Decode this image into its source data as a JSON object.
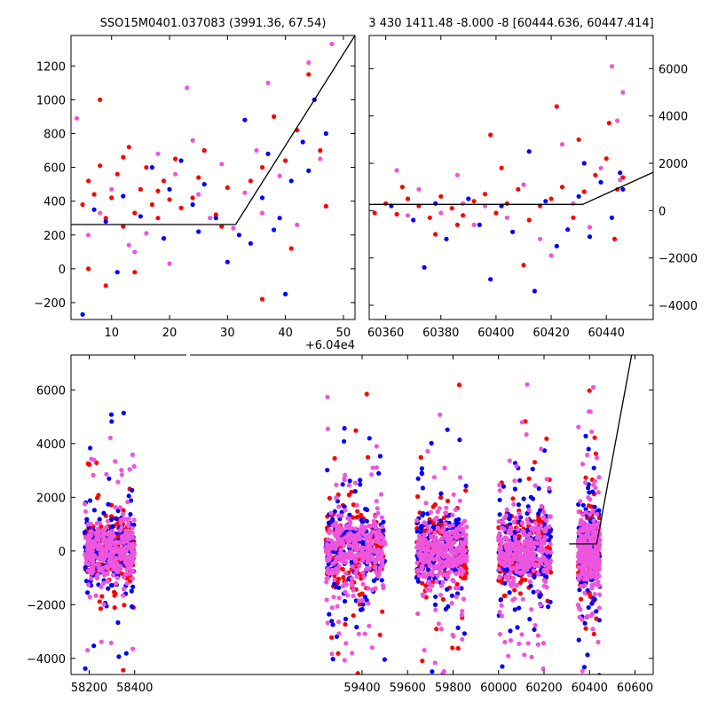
{
  "figure": {
    "title_left": "SSO15M0401.037083 (3991.36, 67.54)",
    "title_right": "3 430 1411.48 -8.000 -8 [60444.636, 60447.414]"
  },
  "colors": {
    "red": "#ff0000",
    "blue": "#0000ff",
    "violet": "#ee55dd",
    "model": "#000000"
  },
  "chart_data": [
    {
      "panel": "top-left",
      "type": "scatter",
      "xlim": [
        3,
        52
      ],
      "ylim": [
        -300,
        1380
      ],
      "x_offset_label": "+6.04e4",
      "x_ticks": [
        10,
        20,
        30,
        40,
        50
      ],
      "y_ticks": [
        -200,
        0,
        200,
        400,
        600,
        800,
        1000,
        1200
      ],
      "y_tick_labels": [
        "−200",
        "0",
        "200",
        "400",
        "600",
        "800",
        "1000",
        "1200"
      ],
      "model_line": {
        "x": [
          3,
          31.4,
          52
        ],
        "y": [
          262,
          262,
          1380
        ]
      },
      "series": [
        {
          "color": "red",
          "points": [
            [
              5,
              380
            ],
            [
              6,
              520
            ],
            [
              7,
              440
            ],
            [
              8,
              610
            ],
            [
              9,
              300
            ],
            [
              10,
              420
            ],
            [
              11,
              560
            ],
            [
              12,
              250
            ],
            [
              8,
              1000
            ],
            [
              13,
              720
            ],
            [
              14,
              330
            ],
            [
              15,
              470
            ],
            [
              17,
              380
            ],
            [
              18,
              300
            ],
            [
              19,
              520
            ],
            [
              20,
              410
            ],
            [
              21,
              650
            ],
            [
              22,
              360
            ],
            [
              24,
              420
            ],
            [
              25,
              540
            ],
            [
              26,
              700
            ],
            [
              28,
              320
            ],
            [
              30,
              480
            ],
            [
              34,
              520
            ],
            [
              36,
              600
            ],
            [
              38,
              900
            ],
            [
              40,
              640
            ],
            [
              42,
              820
            ],
            [
              44,
              1150
            ],
            [
              46,
              700
            ],
            [
              47,
              370
            ],
            [
              36,
              -180
            ],
            [
              41,
              120
            ],
            [
              29,
              250
            ],
            [
              16,
              600
            ],
            [
              6,
              0
            ],
            [
              9,
              -100
            ],
            [
              12,
              660
            ],
            [
              14,
              -20
            ],
            [
              18,
              460
            ]
          ]
        },
        {
          "color": "blue",
          "points": [
            [
              7,
              350
            ],
            [
              9,
              280
            ],
            [
              12,
              430
            ],
            [
              15,
              310
            ],
            [
              17,
              600
            ],
            [
              20,
              470
            ],
            [
              22,
              640
            ],
            [
              24,
              380
            ],
            [
              26,
              500
            ],
            [
              28,
              300
            ],
            [
              32,
              200
            ],
            [
              34,
              150
            ],
            [
              36,
              420
            ],
            [
              37,
              680
            ],
            [
              39,
              300
            ],
            [
              41,
              520
            ],
            [
              43,
              750
            ],
            [
              45,
              1000
            ],
            [
              47,
              800
            ],
            [
              33,
              880
            ],
            [
              30,
              40
            ],
            [
              25,
              220
            ],
            [
              19,
              180
            ],
            [
              11,
              -20
            ],
            [
              5,
              -270
            ],
            [
              40,
              -150
            ],
            [
              38,
              230
            ],
            [
              44,
              580
            ]
          ]
        },
        {
          "color": "violet",
          "points": [
            [
              4,
              890
            ],
            [
              6,
              200
            ],
            [
              8,
              330
            ],
            [
              10,
              470
            ],
            [
              13,
              140
            ],
            [
              16,
              210
            ],
            [
              18,
              680
            ],
            [
              21,
              560
            ],
            [
              23,
              1070
            ],
            [
              25,
              440
            ],
            [
              27,
              300
            ],
            [
              29,
              620
            ],
            [
              31,
              240
            ],
            [
              33,
              450
            ],
            [
              35,
              700
            ],
            [
              37,
              1100
            ],
            [
              39,
              550
            ],
            [
              42,
              260
            ],
            [
              44,
              1220
            ],
            [
              46,
              650
            ],
            [
              48,
              1330
            ],
            [
              20,
              30
            ],
            [
              14,
              100
            ],
            [
              24,
              760
            ],
            [
              36,
              330
            ]
          ]
        }
      ]
    },
    {
      "panel": "top-right",
      "type": "scatter",
      "xlim": [
        60354,
        60457
      ],
      "ylim": [
        -4600,
        7400
      ],
      "x_ticks": [
        60360,
        60380,
        60400,
        60420,
        60440
      ],
      "y_ticks": [
        -4000,
        -2000,
        0,
        2000,
        4000,
        6000
      ],
      "y_tick_labels": [
        "−4000",
        "−2000",
        "0",
        "2000",
        "4000",
        "6000"
      ],
      "model_line": {
        "x": [
          60354,
          60431.4,
          60457
        ],
        "y": [
          262,
          262,
          1620
        ]
      },
      "series": [
        {
          "color": "red",
          "points": [
            [
              60356,
              -100
            ],
            [
              60360,
              300
            ],
            [
              60364,
              -150
            ],
            [
              60368,
              500
            ],
            [
              60372,
              200
            ],
            [
              60376,
              -300
            ],
            [
              60380,
              600
            ],
            [
              60384,
              100
            ],
            [
              60388,
              -200
            ],
            [
              60392,
              400
            ],
            [
              60396,
              700
            ],
            [
              60400,
              -100
            ],
            [
              60404,
              300
            ],
            [
              60408,
              900
            ],
            [
              60412,
              -400
            ],
            [
              60416,
              200
            ],
            [
              60420,
              500
            ],
            [
              60424,
              1000
            ],
            [
              60428,
              -300
            ],
            [
              60432,
              800
            ],
            [
              60436,
              1500
            ],
            [
              60440,
              2200
            ],
            [
              60444,
              900
            ],
            [
              60446,
              1400
            ],
            [
              60430,
              3000
            ],
            [
              60422,
              4400
            ],
            [
              60410,
              -2300
            ],
            [
              60398,
              3200
            ],
            [
              60378,
              -1000
            ],
            [
              60366,
              1000
            ],
            [
              60441,
              3700
            ],
            [
              60443,
              -1200
            ],
            [
              60386,
              -600
            ],
            [
              60402,
              1800
            ]
          ]
        },
        {
          "color": "blue",
          "points": [
            [
              60362,
              200
            ],
            [
              60370,
              -400
            ],
            [
              60378,
              300
            ],
            [
              60382,
              -1200
            ],
            [
              60390,
              500
            ],
            [
              60394,
              -600
            ],
            [
              60402,
              200
            ],
            [
              60406,
              -900
            ],
            [
              60412,
              2500
            ],
            [
              60414,
              -3400
            ],
            [
              60418,
              400
            ],
            [
              60426,
              -800
            ],
            [
              60430,
              600
            ],
            [
              60434,
              -1100
            ],
            [
              60438,
              1200
            ],
            [
              60442,
              -300
            ],
            [
              60445,
              1600
            ],
            [
              60446,
              900
            ],
            [
              60398,
              -2900
            ],
            [
              60374,
              -2400
            ],
            [
              60432,
              2000
            ],
            [
              60422,
              -1500
            ]
          ]
        },
        {
          "color": "violet",
          "points": [
            [
              60364,
              1700
            ],
            [
              60368,
              -200
            ],
            [
              60372,
              900
            ],
            [
              60380,
              -100
            ],
            [
              60388,
              300
            ],
            [
              60392,
              -600
            ],
            [
              60396,
              200
            ],
            [
              60404,
              -300
            ],
            [
              60410,
              1100
            ],
            [
              60416,
              -1200
            ],
            [
              60424,
              2800
            ],
            [
              60428,
              300
            ],
            [
              60434,
              -700
            ],
            [
              60438,
              1800
            ],
            [
              60442,
              6100
            ],
            [
              60444,
              3800
            ],
            [
              60446,
              5000
            ],
            [
              60445,
              1300
            ],
            [
              60386,
              1500
            ],
            [
              60420,
              -1900
            ]
          ]
        }
      ]
    },
    {
      "panel": "bottom",
      "type": "scatter",
      "xlim": [
        58120,
        60680
      ],
      "ylim": [
        -4600,
        7300
      ],
      "x_ticks": [
        58200,
        58400,
        59400,
        59600,
        59800,
        60000,
        60200,
        60400,
        60600
      ],
      "y_ticks": [
        -4000,
        -2000,
        0,
        2000,
        4000,
        6000
      ],
      "y_tick_labels": [
        "−4000",
        "−2000",
        "0",
        "2000",
        "4000",
        "6000"
      ],
      "model_line": {
        "x": [
          60310,
          60431.4,
          60585
        ],
        "y": [
          262,
          262,
          7300
        ]
      },
      "groups": [
        {
          "x": [
            58180,
            58400
          ],
          "core": 550,
          "spread": 2200
        },
        {
          "x": [
            59240,
            59500
          ],
          "core": 650,
          "spread": 2500
        },
        {
          "x": [
            59640,
            59860
          ],
          "core": 600,
          "spread": 2400
        },
        {
          "x": [
            60000,
            60230
          ],
          "core": 650,
          "spread": 2600
        },
        {
          "x": [
            60350,
            60445
          ],
          "core": 600,
          "spread": 2200
        }
      ]
    }
  ]
}
